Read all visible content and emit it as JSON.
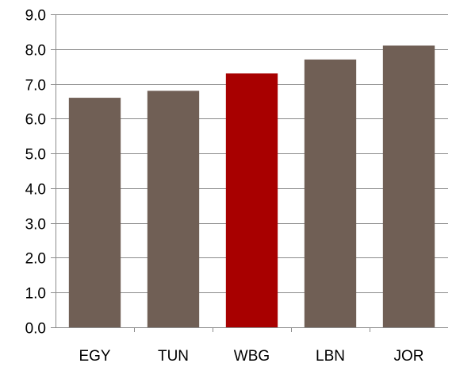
{
  "chart_data": {
    "type": "bar",
    "categories": [
      "EGY",
      "TUN",
      "WBG",
      "LBN",
      "JOR"
    ],
    "values": [
      6.6,
      6.8,
      7.3,
      7.7,
      8.1
    ],
    "ylim": [
      0,
      9
    ],
    "yticks": [
      "0.0",
      "1.0",
      "2.0",
      "3.0",
      "4.0",
      "5.0",
      "6.0",
      "7.0",
      "8.0",
      "9.0"
    ],
    "grid": true,
    "colors": {
      "default": "#705F55",
      "highlight": "#A80000"
    },
    "highlight_category": "WBG"
  }
}
